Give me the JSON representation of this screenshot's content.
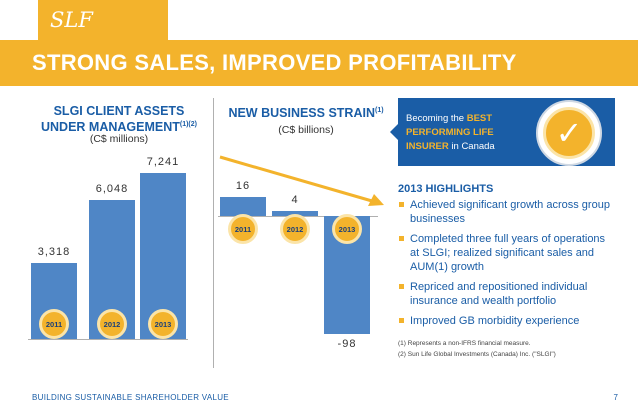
{
  "header": {
    "tab_label": "SLF Canada",
    "title": "STRONG SALES, IMPROVED PROFITABILITY"
  },
  "chart_data": [
    {
      "type": "bar",
      "title": "SLGI CLIENT ASSETS UNDER MANAGEMENT",
      "title_superscript": "(1)(2)",
      "subtitle": "(C$ millions)",
      "categories": [
        "2011",
        "2012",
        "2013"
      ],
      "values": [
        3318,
        6048,
        7241
      ],
      "value_labels": [
        "3,318",
        "6,048",
        "7,241"
      ]
    },
    {
      "type": "bar",
      "title": "NEW BUSINESS STRAIN",
      "title_superscript": "(1)",
      "subtitle": "(C$ billions)",
      "categories": [
        "2011",
        "2012",
        "2013"
      ],
      "values": [
        16,
        4,
        -98
      ],
      "value_labels": [
        "16",
        "4",
        "-98"
      ],
      "trend_arrow": "downward"
    }
  ],
  "callout": {
    "text_before": "Becoming the ",
    "highlight": "BEST PERFORMING LIFE INSURER",
    "text_after": " in Canada"
  },
  "highlights": {
    "title": "2013 HIGHLIGHTS",
    "items": [
      "Achieved significant growth across group businesses",
      "Completed three full years of operations at SLGI; realized significant sales and AUM(1) growth",
      "Repriced and repositioned individual insurance and wealth portfolio",
      "Improved GB morbidity experience"
    ]
  },
  "footnotes": [
    "(1) Represents a non-IFRS financial measure.",
    "(2) Sun Life Global Investments (Canada) Inc. (\"SLGI\")"
  ],
  "footer": {
    "left": "BUILDING SUSTAINABLE SHAREHOLDER VALUE",
    "page": "7"
  },
  "colors": {
    "accent": "#f3b32c",
    "brand_blue": "#1a5da6",
    "bar_blue": "#4f86c6"
  },
  "icons": {
    "badge": "checkmark-icon"
  }
}
